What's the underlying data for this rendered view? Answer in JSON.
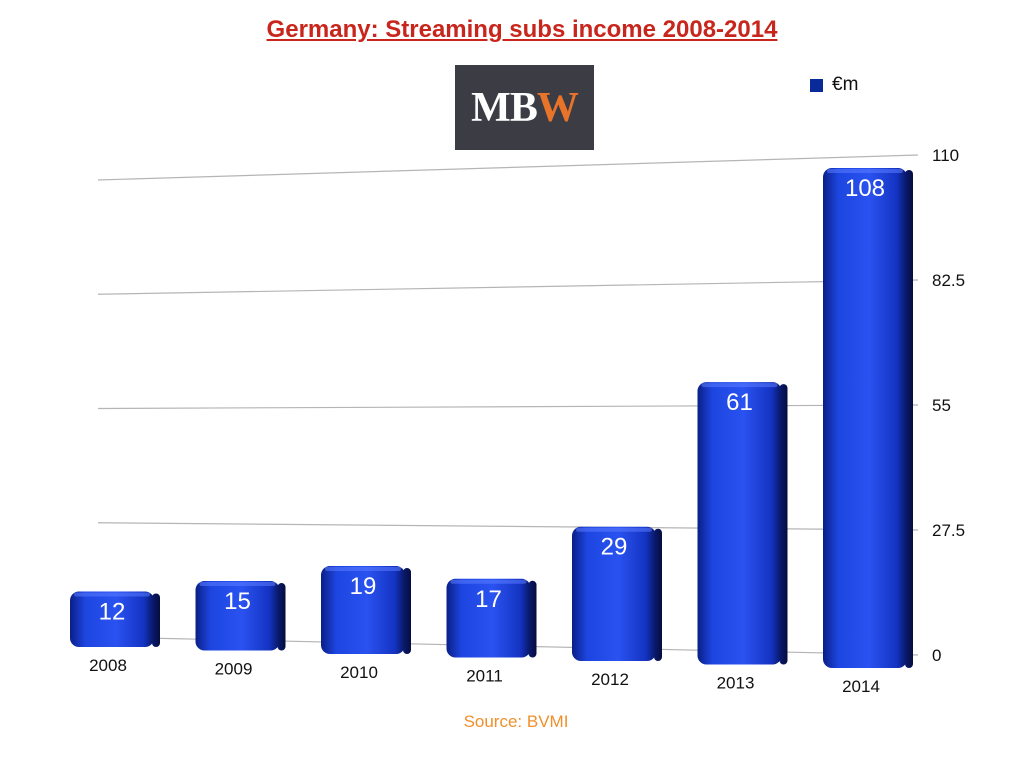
{
  "chart_data": {
    "type": "bar",
    "title": "Germany: Streaming subs income 2008-2014",
    "categories": [
      "2008",
      "2009",
      "2010",
      "2011",
      "2012",
      "2013",
      "2014"
    ],
    "series": [
      {
        "name": "€m",
        "values": [
          12,
          15,
          19,
          17,
          29,
          61,
          108
        ]
      }
    ],
    "ylim": [
      0,
      110
    ],
    "y_ticks": [
      0,
      27.5,
      55,
      82.5,
      110
    ],
    "y_axis_side": "right",
    "grid": true,
    "legend_position": "top-right",
    "source": "Source: BVMI",
    "colors": {
      "bar": "#1a3fd6",
      "title": "#c8261c",
      "source": "#f0902c"
    }
  },
  "logo": {
    "text_mb": "MB",
    "text_w": "W"
  }
}
